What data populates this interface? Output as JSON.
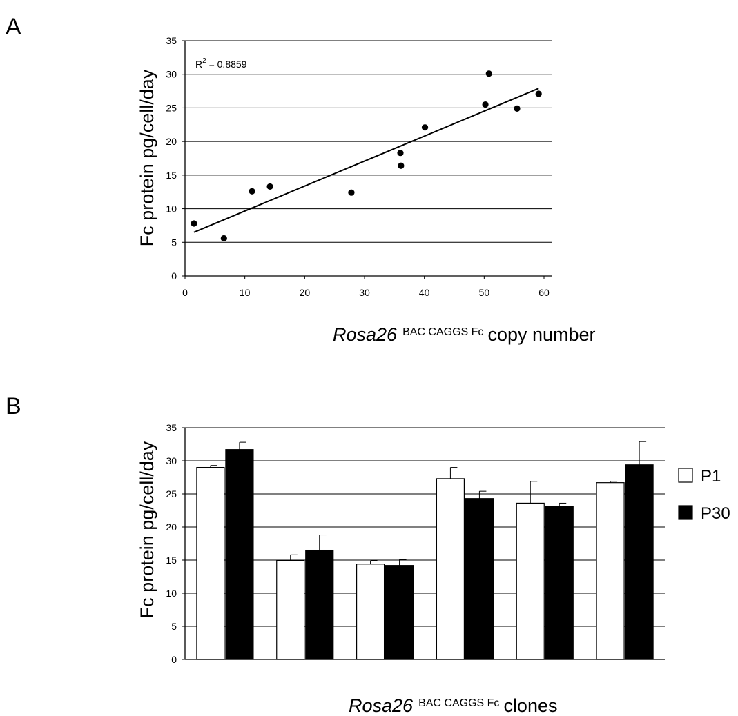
{
  "panels": {
    "a": {
      "letter": "A"
    },
    "b": {
      "letter": "B"
    }
  },
  "chart_data": [
    {
      "type": "scatter",
      "panel": "A",
      "ylabel": "Fc protein pg/cell/day",
      "xlabel": {
        "italic": "Rosa26",
        "superscript": "BAC  CAGGS Fc",
        "rest": "copy number"
      },
      "xlim": [
        0,
        60
      ],
      "ylim": [
        0,
        35
      ],
      "xticks": [
        0,
        10,
        20,
        30,
        40,
        50,
        60
      ],
      "yticks": [
        0,
        5,
        10,
        15,
        20,
        25,
        30,
        35
      ],
      "grid": "horizontal",
      "points": [
        {
          "x": 1.5,
          "y": 7.8
        },
        {
          "x": 6.5,
          "y": 5.6
        },
        {
          "x": 11.2,
          "y": 12.6
        },
        {
          "x": 14.2,
          "y": 13.3
        },
        {
          "x": 27.8,
          "y": 12.4
        },
        {
          "x": 36.0,
          "y": 18.3
        },
        {
          "x": 36.1,
          "y": 16.4
        },
        {
          "x": 40.1,
          "y": 22.1
        },
        {
          "x": 50.2,
          "y": 25.5
        },
        {
          "x": 50.8,
          "y": 30.1
        },
        {
          "x": 55.5,
          "y": 24.9
        },
        {
          "x": 59.1,
          "y": 27.1
        }
      ],
      "trendline": {
        "x": [
          1.5,
          59.1
        ],
        "y": [
          6.5,
          27.9
        ]
      },
      "annotation": {
        "base": "R",
        "sup": "2",
        "text": " = 0.8859"
      }
    },
    {
      "type": "bar",
      "panel": "B",
      "ylabel": "Fc protein pg/cell/day",
      "xlabel": {
        "italic": "Rosa26",
        "superscript": "BAC  CAGGS Fc",
        "rest": "clones"
      },
      "ylim": [
        0,
        35
      ],
      "yticks": [
        0,
        5,
        10,
        15,
        20,
        25,
        30,
        35
      ],
      "grid": "horizontal",
      "legend_position": "right",
      "groups": 6,
      "series": [
        {
          "name": "P1",
          "color": "#ffffff",
          "values": [
            29.0,
            14.9,
            14.4,
            27.3,
            23.6,
            26.7
          ],
          "errors": [
            0.3,
            0.9,
            0.5,
            1.7,
            3.3,
            0.2
          ]
        },
        {
          "name": "P30",
          "color": "#000000",
          "values": [
            31.7,
            16.5,
            14.2,
            24.3,
            23.1,
            29.4
          ],
          "errors": [
            1.1,
            2.3,
            0.9,
            1.1,
            0.5,
            3.5
          ]
        }
      ]
    }
  ]
}
